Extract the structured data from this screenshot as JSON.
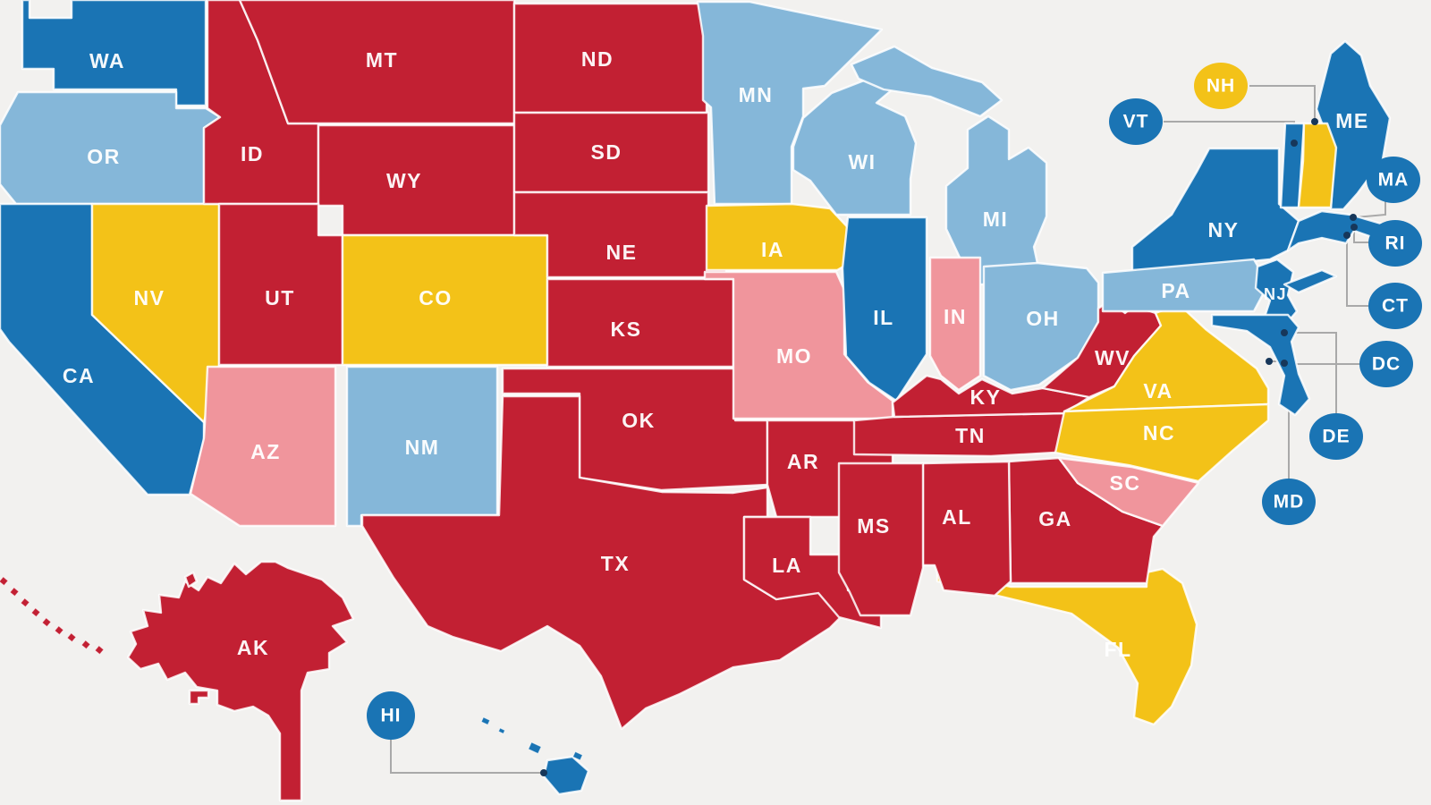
{
  "map": {
    "background": "#f2f1ef",
    "border_color": "#ffffff",
    "callout_line_color": "#a9a9a9",
    "marker_dot_color": "#17375a",
    "palette": {
      "dark_blue": "#1a74b4",
      "light_blue": "#85b7d9",
      "yellow": "#f3c218",
      "pink": "#f0959c",
      "red": "#c22033"
    },
    "states": [
      {
        "abbr": "WA",
        "label": "WA",
        "color": "dark_blue"
      },
      {
        "abbr": "OR",
        "label": "OR",
        "color": "light_blue"
      },
      {
        "abbr": "CA",
        "label": "CA",
        "color": "dark_blue"
      },
      {
        "abbr": "NV",
        "label": "NV",
        "color": "yellow"
      },
      {
        "abbr": "ID",
        "label": "ID",
        "color": "red"
      },
      {
        "abbr": "MT",
        "label": "MT",
        "color": "red"
      },
      {
        "abbr": "WY",
        "label": "WY",
        "color": "red"
      },
      {
        "abbr": "UT",
        "label": "UT",
        "color": "red"
      },
      {
        "abbr": "CO",
        "label": "CO",
        "color": "yellow"
      },
      {
        "abbr": "AZ",
        "label": "AZ",
        "color": "pink"
      },
      {
        "abbr": "NM",
        "label": "NM",
        "color": "light_blue"
      },
      {
        "abbr": "ND",
        "label": "ND",
        "color": "red"
      },
      {
        "abbr": "SD",
        "label": "SD",
        "color": "red"
      },
      {
        "abbr": "NE",
        "label": "NE",
        "color": "red"
      },
      {
        "abbr": "KS",
        "label": "KS",
        "color": "red"
      },
      {
        "abbr": "OK",
        "label": "OK",
        "color": "red"
      },
      {
        "abbr": "TX",
        "label": "TX",
        "color": "red"
      },
      {
        "abbr": "MN",
        "label": "MN",
        "color": "light_blue"
      },
      {
        "abbr": "IA",
        "label": "IA",
        "color": "yellow"
      },
      {
        "abbr": "MO",
        "label": "MO",
        "color": "pink"
      },
      {
        "abbr": "AR",
        "label": "AR",
        "color": "red"
      },
      {
        "abbr": "LA",
        "label": "LA",
        "color": "red"
      },
      {
        "abbr": "WI",
        "label": "WI",
        "color": "light_blue"
      },
      {
        "abbr": "MI",
        "label": "MI",
        "color": "light_blue"
      },
      {
        "abbr": "IL",
        "label": "IL",
        "color": "dark_blue"
      },
      {
        "abbr": "IN",
        "label": "IN",
        "color": "pink"
      },
      {
        "abbr": "OH",
        "label": "OH",
        "color": "light_blue"
      },
      {
        "abbr": "FL",
        "label": "FL",
        "color": "yellow"
      },
      {
        "abbr": "GA",
        "label": "GA",
        "color": "red"
      },
      {
        "abbr": "AL",
        "label": "AL",
        "color": "red"
      },
      {
        "abbr": "MS",
        "label": "MS",
        "color": "red"
      },
      {
        "abbr": "TN",
        "label": "TN",
        "color": "red"
      },
      {
        "abbr": "KY",
        "label": "KY",
        "color": "red"
      },
      {
        "abbr": "WV",
        "label": "WV",
        "color": "red"
      },
      {
        "abbr": "VA",
        "label": "VA",
        "color": "yellow"
      },
      {
        "abbr": "NC",
        "label": "NC",
        "color": "yellow"
      },
      {
        "abbr": "SC",
        "label": "SC",
        "color": "pink"
      },
      {
        "abbr": "NY",
        "label": "NY",
        "color": "dark_blue"
      },
      {
        "abbr": "PA",
        "label": "PA",
        "color": "light_blue"
      },
      {
        "abbr": "NJ",
        "label": "NJ",
        "color": "dark_blue"
      },
      {
        "abbr": "ME",
        "label": "ME",
        "color": "dark_blue"
      },
      {
        "abbr": "AK",
        "label": "AK",
        "color": "red"
      }
    ],
    "unlabeled_regions": [
      {
        "id": "vermont-state",
        "color": "dark_blue"
      },
      {
        "id": "new-hampshire-state",
        "color": "yellow"
      },
      {
        "id": "new-england-coast",
        "color": "dark_blue"
      },
      {
        "id": "long-island",
        "color": "dark_blue"
      },
      {
        "id": "maryland-delaware-peninsula",
        "color": "dark_blue"
      },
      {
        "id": "michigan-upper-peninsula",
        "color": "light_blue"
      },
      {
        "id": "alaska-islet",
        "color": "red"
      },
      {
        "id": "kodiak-island",
        "color": "red"
      },
      {
        "id": "aleutian-islands",
        "color": "red"
      },
      {
        "id": "hawaii-islands",
        "color": "dark_blue"
      }
    ],
    "callouts": [
      {
        "abbr": "NH",
        "label": "NH",
        "color": "yellow"
      },
      {
        "abbr": "VT",
        "label": "VT",
        "color": "dark_blue"
      },
      {
        "abbr": "MA",
        "label": "MA",
        "color": "dark_blue"
      },
      {
        "abbr": "RI",
        "label": "RI",
        "color": "dark_blue"
      },
      {
        "abbr": "CT",
        "label": "CT",
        "color": "dark_blue"
      },
      {
        "abbr": "DC",
        "label": "DC",
        "color": "dark_blue"
      },
      {
        "abbr": "DE",
        "label": "DE",
        "color": "dark_blue"
      },
      {
        "abbr": "MD",
        "label": "MD",
        "color": "dark_blue"
      },
      {
        "abbr": "HI",
        "label": "HI",
        "color": "dark_blue"
      }
    ]
  }
}
